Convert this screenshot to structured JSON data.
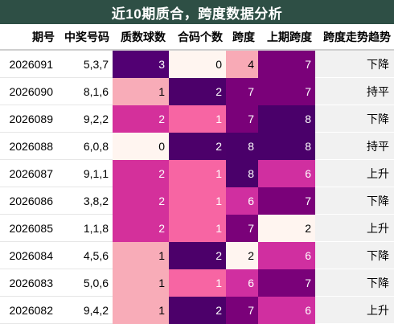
{
  "title": "近10期质合，跨度数据分析",
  "columns": [
    "期号",
    "中奖号码",
    "质数球数",
    "合码个数",
    "跨度",
    "上期跨度",
    "跨度走势趋势"
  ],
  "rows": [
    {
      "issue": "2026091",
      "numbers": "5,3,7",
      "prime": "3",
      "composite": "0",
      "span": "4",
      "prev_span": "7",
      "trend": "下降"
    },
    {
      "issue": "2026090",
      "numbers": "8,1,6",
      "prime": "1",
      "composite": "2",
      "span": "7",
      "prev_span": "7",
      "trend": "持平"
    },
    {
      "issue": "2026089",
      "numbers": "9,2,2",
      "prime": "2",
      "composite": "1",
      "span": "7",
      "prev_span": "8",
      "trend": "下降"
    },
    {
      "issue": "2026088",
      "numbers": "6,0,8",
      "prime": "0",
      "composite": "2",
      "span": "8",
      "prev_span": "8",
      "trend": "持平"
    },
    {
      "issue": "2026087",
      "numbers": "9,1,1",
      "prime": "2",
      "composite": "1",
      "span": "8",
      "prev_span": "6",
      "trend": "上升"
    },
    {
      "issue": "2026086",
      "numbers": "3,8,2",
      "prime": "2",
      "composite": "1",
      "span": "6",
      "prev_span": "7",
      "trend": "下降"
    },
    {
      "issue": "2026085",
      "numbers": "1,1,8",
      "prime": "2",
      "composite": "1",
      "span": "7",
      "prev_span": "2",
      "trend": "上升"
    },
    {
      "issue": "2026084",
      "numbers": "4,5,6",
      "prime": "1",
      "composite": "2",
      "span": "2",
      "prev_span": "6",
      "trend": "下降"
    },
    {
      "issue": "2026083",
      "numbers": "5,0,6",
      "prime": "1",
      "composite": "1",
      "span": "6",
      "prev_span": "7",
      "trend": "下降"
    },
    {
      "issue": "2026082",
      "numbers": "9,4,2",
      "prime": "1",
      "composite": "2",
      "span": "7",
      "prev_span": "6",
      "trend": "上升"
    }
  ],
  "heat_colors": {
    "prime": {
      "0": "#fff5f0",
      "1": "#f8acb8",
      "2": "#d4309b",
      "3": "#520073"
    },
    "composite": {
      "0": "#fff5f0",
      "1": "#f765a3",
      "2": "#4c006a"
    },
    "span": {
      "2": "#fff5f0",
      "4": "#f8aab6",
      "6": "#d02fa0",
      "7": "#7a0179",
      "8": "#4a006a"
    }
  },
  "heat_text": {
    "prime": {
      "0": "#000000",
      "1": "#000000",
      "2": "#ffffff",
      "3": "#ffffff"
    },
    "composite": {
      "0": "#000000",
      "1": "#ffffff",
      "2": "#ffffff"
    },
    "span": {
      "2": "#000000",
      "4": "#000000",
      "6": "#ffffff",
      "7": "#ffffff",
      "8": "#ffffff"
    }
  }
}
